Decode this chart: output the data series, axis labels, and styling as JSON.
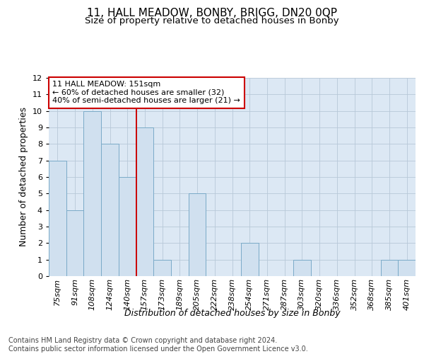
{
  "title_line1": "11, HALL MEADOW, BONBY, BRIGG, DN20 0QP",
  "title_line2": "Size of property relative to detached houses in Bonby",
  "xlabel": "Distribution of detached houses by size in Bonby",
  "ylabel": "Number of detached properties",
  "categories": [
    "75sqm",
    "91sqm",
    "108sqm",
    "124sqm",
    "140sqm",
    "157sqm",
    "173sqm",
    "189sqm",
    "205sqm",
    "222sqm",
    "238sqm",
    "254sqm",
    "271sqm",
    "287sqm",
    "303sqm",
    "320sqm",
    "336sqm",
    "352sqm",
    "368sqm",
    "385sqm",
    "401sqm"
  ],
  "values": [
    7,
    4,
    10,
    8,
    6,
    9,
    1,
    0,
    5,
    0,
    0,
    2,
    0,
    0,
    1,
    0,
    0,
    0,
    0,
    1,
    1
  ],
  "bar_color": "#d0e0ef",
  "bar_edge_color": "#7aaac8",
  "grid_color": "#b8c8d8",
  "subject_line_index": 5,
  "subject_line_color": "#cc0000",
  "annotation_line1": "11 HALL MEADOW: 151sqm",
  "annotation_line2": "← 60% of detached houses are smaller (32)",
  "annotation_line3": "40% of semi-detached houses are larger (21) →",
  "annotation_box_color": "#cc0000",
  "ylim": [
    0,
    12
  ],
  "yticks": [
    0,
    1,
    2,
    3,
    4,
    5,
    6,
    7,
    8,
    9,
    10,
    11,
    12
  ],
  "footer_text": "Contains HM Land Registry data © Crown copyright and database right 2024.\nContains public sector information licensed under the Open Government Licence v3.0.",
  "title_fontsize": 11,
  "subtitle_fontsize": 9.5,
  "axis_label_fontsize": 9,
  "tick_fontsize": 8,
  "annotation_fontsize": 8,
  "footer_fontsize": 7
}
